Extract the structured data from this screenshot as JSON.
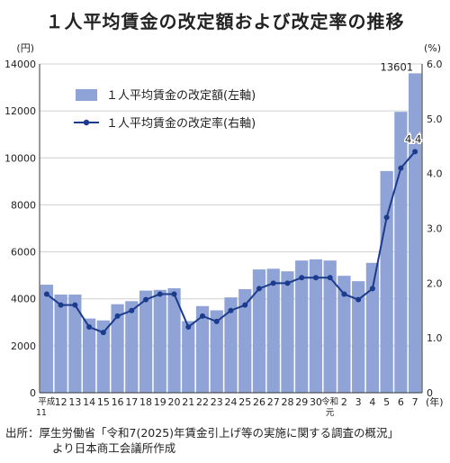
{
  "title": "１人平均賃金の改定額および改定率の推移",
  "source_line1": "出所：厚生労働省「令和7(2025)年賃金引上げ等の実施に関する調査の概況」",
  "source_line2": "より日本商工会議所作成",
  "chart_data": {
    "type": "bar",
    "categories": [
      "平成11",
      "12",
      "13",
      "14",
      "15",
      "16",
      "17",
      "18",
      "19",
      "20",
      "21",
      "22",
      "23",
      "24",
      "25",
      "26",
      "27",
      "28",
      "29",
      "30",
      "令和元",
      "2",
      "3",
      "4",
      "5",
      "6",
      "7"
    ],
    "series": [
      {
        "name": "１人平均賃金の改定額(左軸)",
        "type": "bar",
        "axis": "left",
        "values": [
          4600,
          4180,
          4180,
          3160,
          3080,
          3770,
          3900,
          4350,
          4380,
          4450,
          3050,
          3690,
          3510,
          4060,
          4410,
          5250,
          5280,
          5170,
          5630,
          5680,
          5630,
          4980,
          4750,
          5530,
          9440,
          11960,
          13601
        ]
      },
      {
        "name": "１人平均賃金の改定率(右軸)",
        "type": "line",
        "axis": "right",
        "values": [
          1.8,
          1.6,
          1.6,
          1.2,
          1.1,
          1.4,
          1.5,
          1.7,
          1.8,
          1.8,
          1.2,
          1.4,
          1.3,
          1.5,
          1.6,
          1.9,
          2.0,
          2.0,
          2.1,
          2.1,
          2.1,
          1.8,
          1.7,
          1.9,
          3.2,
          4.1,
          4.4
        ]
      }
    ],
    "y_left": {
      "unit": "(円)",
      "min": 0,
      "max": 14000,
      "ticks": [
        "0",
        "2000",
        "4000",
        "6000",
        "8000",
        "10000",
        "12000",
        "14000"
      ]
    },
    "y_right": {
      "unit": "(%)",
      "min": 0,
      "max": 6.0,
      "ticks": [
        "0",
        "1.0",
        "2.0",
        "3.0",
        "4.0",
        "5.0",
        "6.0"
      ]
    },
    "x_unit": "(年)",
    "annotations": [
      {
        "text": "13601",
        "index": 26,
        "series": 0
      },
      {
        "text": "4.4",
        "index": 26,
        "series": 1
      }
    ],
    "first_category_sub": "11",
    "reiwa_label_top": "令和",
    "reiwa_label_bottom": "元",
    "heisei_label": "平成",
    "legend_position": "top-left",
    "colors": {
      "bar": "#8fa3d6",
      "line": "#1b3b8c",
      "grid": "#d0d0d0"
    }
  }
}
